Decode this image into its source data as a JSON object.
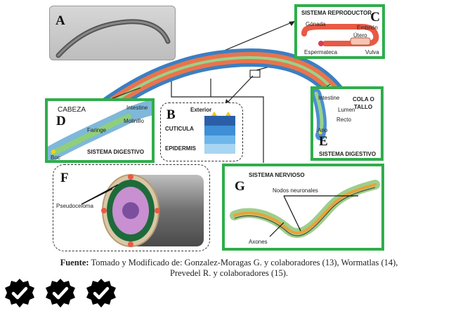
{
  "panels": {
    "A": {
      "letter": "A"
    },
    "B": {
      "letter": "B",
      "exterior": "Exterior",
      "cuticula": "CUTICULA",
      "epidermis": "EPIDERMIS"
    },
    "C": {
      "letter": "C",
      "title": "SISTEMA REPRODUCTOR",
      "gonada": "Gónada",
      "embrion": "Embrión",
      "utero": "Útero",
      "espermateca": "Espermateca",
      "vulva": "Vulva"
    },
    "D": {
      "letter": "D",
      "title": "CABEZA",
      "intestine": "Intestine",
      "molinillo": "Molinillo",
      "faringe": "Faringe",
      "boc": "Boc",
      "system": "SISTEMA DIGESTIVO"
    },
    "E": {
      "letter": "E",
      "title_line1": "COLA O",
      "title_line2": "TALLO",
      "intestine": "Intestine",
      "lumen": "Lumen",
      "recto": "Recto",
      "ano": "Ano",
      "system": "SISTEMA DIGESTIVO"
    },
    "F": {
      "letter": "F",
      "pseudoceloma": "Pseudoceloma"
    },
    "G": {
      "letter": "G",
      "title": "SISTEMA NERVIOSO",
      "nodos": "Nodos neuronales",
      "axones": "Axones"
    }
  },
  "caption": {
    "fuente_label": "Fuente:",
    "line1": "Tomado y Modificado de: Gonzalez-Moragas G. y colaboradores (13), Wormatlas  (14),",
    "line2": "Prevedel R. y colaboradores (15)."
  },
  "badges": [
    "check-badge",
    "check-badge",
    "check-badge"
  ],
  "colors": {
    "panel_border": "#2fae4b",
    "badge": "#000000"
  }
}
